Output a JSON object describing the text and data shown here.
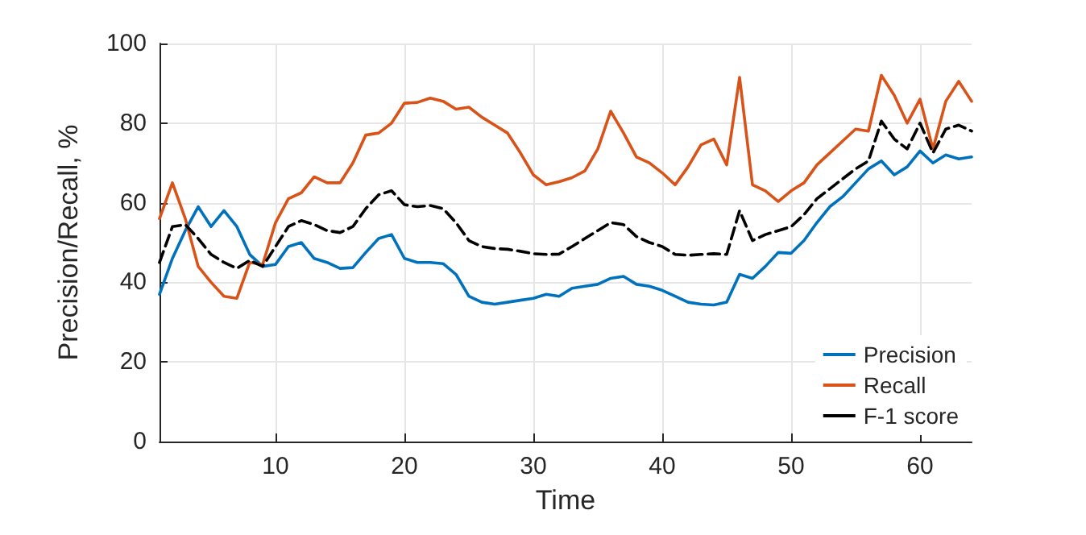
{
  "chart_data": {
    "type": "line",
    "xlabel": "Time",
    "ylabel": "Precision/Recall, %",
    "x": [
      1,
      2,
      3,
      4,
      5,
      6,
      7,
      8,
      9,
      10,
      11,
      12,
      13,
      14,
      15,
      16,
      17,
      18,
      19,
      20,
      21,
      22,
      23,
      24,
      25,
      26,
      27,
      28,
      29,
      30,
      31,
      32,
      33,
      34,
      35,
      36,
      37,
      38,
      39,
      40,
      41,
      42,
      43,
      44,
      45,
      46,
      47,
      48,
      49,
      50,
      51,
      52,
      53,
      54,
      55,
      56,
      57,
      58,
      59,
      60,
      61,
      62,
      63,
      64
    ],
    "series": [
      {
        "name": "Precision",
        "color": "#0072bd",
        "line_style": "solid",
        "values": [
          37,
          46,
          53,
          59,
          54,
          58,
          54,
          47,
          44,
          44.5,
          49,
          50,
          46,
          45,
          43.5,
          43.7,
          47.5,
          51,
          52,
          46,
          45,
          45,
          44.7,
          42,
          36.5,
          35,
          34.5,
          35,
          35.5,
          36,
          37,
          36.5,
          38.5,
          39,
          39.5,
          41,
          41.5,
          39.5,
          39,
          38,
          36.5,
          35,
          34.5,
          34.3,
          35,
          42,
          41,
          44,
          47.5,
          47.3,
          50.5,
          55,
          59,
          61.5,
          65,
          68.5,
          70.5,
          67,
          69,
          73,
          70,
          72,
          71,
          71.5
        ]
      },
      {
        "name": "Recall",
        "color": "#d95319",
        "line_style": "solid",
        "values": [
          56,
          65,
          56,
          44,
          40,
          36.5,
          36,
          45,
          44.5,
          55,
          61,
          62.5,
          66.5,
          65,
          65,
          70,
          77,
          77.5,
          80,
          85,
          85.2,
          86.3,
          85.5,
          83.5,
          84,
          81.5,
          79.5,
          77.5,
          72.5,
          67,
          64.5,
          65.3,
          66.3,
          68,
          73.5,
          83,
          77.5,
          71.5,
          70,
          67.5,
          64.5,
          69,
          74.5,
          76,
          69.5,
          91.5,
          64.5,
          63,
          60.3,
          63,
          65,
          69.5,
          72.5,
          75.5,
          78.5,
          78,
          92,
          87,
          80,
          86,
          73.5,
          85.5,
          90.5,
          85.5
        ]
      },
      {
        "name": "F-1 score",
        "color": "#000000",
        "line_style": "dashed",
        "values": [
          45,
          54,
          54.5,
          51,
          47,
          45,
          43.5,
          45.5,
          44,
          49,
          54,
          55.5,
          54.5,
          53,
          52.5,
          54,
          58.5,
          62,
          63,
          59.5,
          59,
          59.3,
          58.5,
          55,
          50.5,
          49,
          48.5,
          48.3,
          47.8,
          47.2,
          47,
          47.1,
          49,
          51,
          53,
          55,
          54.5,
          51.5,
          50,
          49,
          47,
          46.8,
          47,
          47.2,
          47,
          58,
          50.5,
          52,
          53,
          54,
          57,
          61,
          63.5,
          66,
          68.5,
          70.5,
          80.5,
          76,
          73.5,
          80,
          72.5,
          78.5,
          79.5,
          78
        ]
      }
    ],
    "xlim": [
      1,
      64
    ],
    "xticks": [
      10,
      20,
      30,
      40,
      50,
      60
    ],
    "ylim": [
      0,
      100
    ],
    "yticks": [
      0,
      20,
      40,
      60,
      80,
      100
    ],
    "grid": true,
    "legend": "bottom right",
    "marker": "none"
  }
}
